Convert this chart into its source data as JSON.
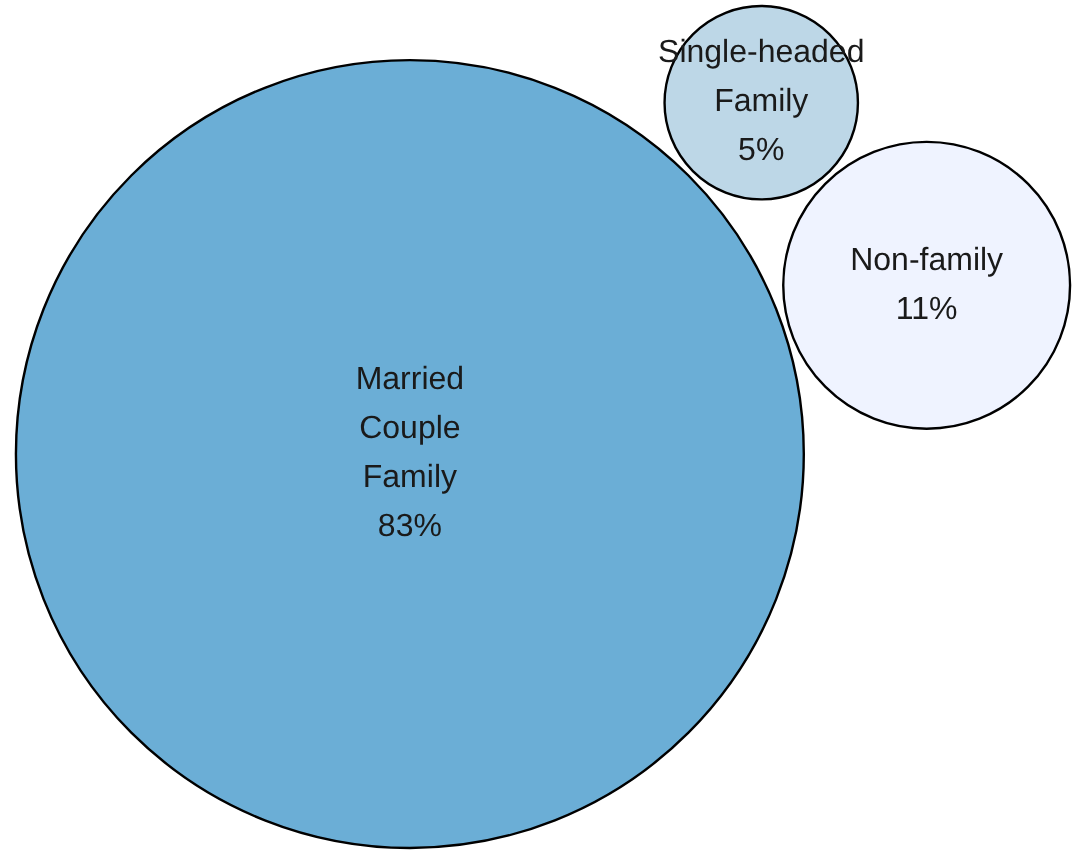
{
  "chart_data": {
    "type": "other",
    "categories": [
      "Married Couple Family",
      "Single-headed Family",
      "Non-family"
    ],
    "values": [
      83,
      5,
      11
    ],
    "value_labels": [
      "83%",
      "5%",
      "11%"
    ],
    "colors": [
      "#6baed6",
      "#bdd7e7",
      "#eff3ff"
    ]
  }
}
